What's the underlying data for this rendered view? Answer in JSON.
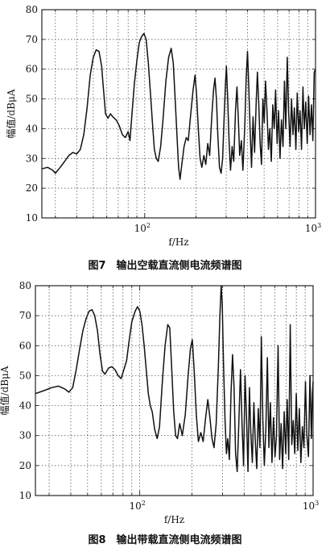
{
  "captions": {
    "fig7": "图7　输出空载直流侧电流频谱图",
    "fig8": "图8　输出带载直流侧电流频谱图"
  },
  "chart_data": [
    {
      "type": "line",
      "caption": "图7　输出空载直流侧电流频谱图",
      "xlabel": "f/Hz",
      "ylabel": "幅值/dBμA",
      "xscale": "log",
      "xlim": [
        25,
        1000
      ],
      "ylim": [
        10,
        80
      ],
      "x_tick_labels": [
        {
          "value": 100,
          "base": "10",
          "exp": "2"
        },
        {
          "value": 1000,
          "base": "10",
          "exp": "3"
        }
      ],
      "y_ticks": [
        10,
        20,
        30,
        40,
        50,
        60,
        70,
        80
      ],
      "grid": true,
      "grid_style": "dotted",
      "series": [
        {
          "points": [
            [
              25,
              26.5
            ],
            [
              27,
              27
            ],
            [
              29,
              26
            ],
            [
              30,
              25
            ],
            [
              32,
              27
            ],
            [
              34,
              29
            ],
            [
              36,
              31
            ],
            [
              38,
              32
            ],
            [
              40,
              31.5
            ],
            [
              42,
              33
            ],
            [
              44,
              38
            ],
            [
              46,
              47
            ],
            [
              48,
              58
            ],
            [
              50,
              64
            ],
            [
              52,
              66.5
            ],
            [
              54,
              66
            ],
            [
              56,
              61
            ],
            [
              57,
              55
            ],
            [
              58,
              50
            ],
            [
              59,
              45
            ],
            [
              61,
              43.5
            ],
            [
              63,
              45
            ],
            [
              65,
              44
            ],
            [
              68,
              43
            ],
            [
              71,
              41
            ],
            [
              74,
              38
            ],
            [
              77,
              37
            ],
            [
              80,
              39
            ],
            [
              82,
              36
            ],
            [
              84,
              44
            ],
            [
              87,
              55
            ],
            [
              90,
              63
            ],
            [
              93,
              69
            ],
            [
              96,
              71
            ],
            [
              99,
              72
            ],
            [
              102,
              70
            ],
            [
              105,
              62
            ],
            [
              108,
              52
            ],
            [
              111,
              42
            ],
            [
              114,
              33
            ],
            [
              117,
              30
            ],
            [
              120,
              29
            ],
            [
              124,
              34
            ],
            [
              128,
              43
            ],
            [
              133,
              56
            ],
            [
              138,
              64
            ],
            [
              143,
              67
            ],
            [
              147,
              62
            ],
            [
              151,
              49
            ],
            [
              155,
              36
            ],
            [
              158,
              27
            ],
            [
              161,
              23
            ],
            [
              165,
              28
            ],
            [
              170,
              34
            ],
            [
              175,
              37
            ],
            [
              180,
              36
            ],
            [
              186,
              45
            ],
            [
              192,
              53
            ],
            [
              197,
              58
            ],
            [
              201,
              52
            ],
            [
              206,
              40
            ],
            [
              211,
              30
            ],
            [
              216,
              27
            ],
            [
              222,
              31
            ],
            [
              228,
              28
            ],
            [
              234,
              35
            ],
            [
              240,
              31
            ],
            [
              247,
              44
            ],
            [
              253,
              53
            ],
            [
              258,
              57
            ],
            [
              263,
              50
            ],
            [
              268,
              38
            ],
            [
              274,
              27
            ],
            [
              280,
              25
            ],
            [
              286,
              30
            ],
            [
              292,
              44
            ],
            [
              297,
              55
            ],
            [
              301,
              61
            ],
            [
              306,
              50
            ],
            [
              312,
              36
            ],
            [
              318,
              26
            ],
            [
              325,
              34
            ],
            [
              332,
              29
            ],
            [
              340,
              46
            ],
            [
              347,
              54
            ],
            [
              353,
              44
            ],
            [
              360,
              31
            ],
            [
              368,
              36
            ],
            [
              376,
              26
            ],
            [
              385,
              40
            ],
            [
              393,
              57
            ],
            [
              400,
              66
            ],
            [
              407,
              54
            ],
            [
              414,
              40
            ],
            [
              422,
              27
            ],
            [
              431,
              44
            ],
            [
              440,
              32
            ],
            [
              449,
              48
            ],
            [
              457,
              59
            ],
            [
              465,
              49
            ],
            [
              474,
              35
            ],
            [
              483,
              28
            ],
            [
              492,
              50
            ],
            [
              501,
              42
            ],
            [
              510,
              56
            ],
            [
              520,
              46
            ],
            [
              530,
              33
            ],
            [
              540,
              40
            ],
            [
              551,
              29
            ],
            [
              562,
              48
            ],
            [
              573,
              40
            ],
            [
              584,
              53
            ],
            [
              596,
              35
            ],
            [
              608,
              46
            ],
            [
              620,
              30
            ],
            [
              632,
              43
            ],
            [
              645,
              34
            ],
            [
              658,
              56
            ],
            [
              670,
              40
            ],
            [
              683,
              64
            ],
            [
              697,
              45
            ],
            [
              710,
              34
            ],
            [
              724,
              50
            ],
            [
              738,
              38
            ],
            [
              752,
              47
            ],
            [
              767,
              33
            ],
            [
              782,
              52
            ],
            [
              797,
              39
            ],
            [
              812,
              46
            ],
            [
              828,
              33
            ],
            [
              844,
              54
            ],
            [
              860,
              40
            ],
            [
              877,
              49
            ],
            [
              894,
              35
            ],
            [
              911,
              51
            ],
            [
              929,
              38
            ],
            [
              947,
              48
            ],
            [
              965,
              36
            ],
            [
              983,
              59
            ],
            [
              1000,
              60
            ]
          ]
        }
      ]
    },
    {
      "type": "line",
      "caption": "图8　输出带载直流侧电流频谱图",
      "xlabel": "f/Hz",
      "ylabel": "幅值/dBμA",
      "xscale": "log",
      "xlim": [
        25,
        1000
      ],
      "ylim": [
        10,
        80
      ],
      "x_tick_labels": [
        {
          "value": 100,
          "base": "10",
          "exp": "2"
        },
        {
          "value": 1000,
          "base": "10",
          "exp": "3"
        }
      ],
      "y_ticks": [
        10,
        20,
        30,
        40,
        50,
        60,
        70,
        80
      ],
      "grid": true,
      "grid_style": "dotted",
      "series": [
        {
          "points": [
            [
              25,
              44
            ],
            [
              28,
              45
            ],
            [
              31,
              46
            ],
            [
              34,
              46.5
            ],
            [
              37,
              45.5
            ],
            [
              39,
              44.5
            ],
            [
              41,
              46
            ],
            [
              43,
              52
            ],
            [
              45,
              59
            ],
            [
              47,
              65
            ],
            [
              49,
              69
            ],
            [
              51,
              71.5
            ],
            [
              53,
              72
            ],
            [
              55,
              70
            ],
            [
              57,
              65
            ],
            [
              59,
              57
            ],
            [
              61,
              51.5
            ],
            [
              63,
              50.5
            ],
            [
              66,
              52.5
            ],
            [
              69,
              53
            ],
            [
              72,
              52
            ],
            [
              75,
              50
            ],
            [
              78,
              49
            ],
            [
              81,
              52
            ],
            [
              84,
              55
            ],
            [
              87,
              62
            ],
            [
              90,
              68
            ],
            [
              94,
              71.5
            ],
            [
              97,
              73
            ],
            [
              100,
              71.5
            ],
            [
              103,
              67
            ],
            [
              106,
              60
            ],
            [
              109,
              52
            ],
            [
              112,
              44
            ],
            [
              115,
              40
            ],
            [
              118,
              38
            ],
            [
              122,
              32
            ],
            [
              126,
              29
            ],
            [
              130,
              33
            ],
            [
              135,
              48
            ],
            [
              140,
              60
            ],
            [
              145,
              67
            ],
            [
              149,
              66
            ],
            [
              153,
              52
            ],
            [
              157,
              38
            ],
            [
              161,
              30
            ],
            [
              165,
              29
            ],
            [
              170,
              34
            ],
            [
              176,
              30
            ],
            [
              183,
              37
            ],
            [
              190,
              50
            ],
            [
              196,
              59
            ],
            [
              201,
              62
            ],
            [
              206,
              52
            ],
            [
              212,
              37
            ],
            [
              218,
              28
            ],
            [
              225,
              31
            ],
            [
              232,
              28
            ],
            [
              240,
              36
            ],
            [
              247,
              42
            ],
            [
              254,
              36
            ],
            [
              261,
              29
            ],
            [
              268,
              26
            ],
            [
              276,
              34
            ],
            [
              284,
              53
            ],
            [
              290,
              70
            ],
            [
              295,
              80
            ],
            [
              299,
              74
            ],
            [
              304,
              55
            ],
            [
              310,
              36
            ],
            [
              316,
              24
            ],
            [
              322,
              29
            ],
            [
              329,
              22
            ],
            [
              336,
              44
            ],
            [
              343,
              57
            ],
            [
              350,
              46
            ],
            [
              357,
              24
            ],
            [
              365,
              18
            ],
            [
              373,
              35
            ],
            [
              381,
              52
            ],
            [
              389,
              34
            ],
            [
              397,
              20
            ],
            [
              405,
              50
            ],
            [
              413,
              36
            ],
            [
              421,
              18
            ],
            [
              429,
              46
            ],
            [
              437,
              31
            ],
            [
              446,
              21
            ],
            [
              455,
              41
            ],
            [
              464,
              28
            ],
            [
              473,
              19
            ],
            [
              483,
              39
            ],
            [
              493,
              26
            ],
            [
              503,
              63
            ],
            [
              513,
              35
            ],
            [
              523,
              20
            ],
            [
              534,
              32
            ],
            [
              545,
              56
            ],
            [
              556,
              26
            ],
            [
              567,
              41
            ],
            [
              579,
              21
            ],
            [
              591,
              36
            ],
            [
              603,
              23
            ],
            [
              615,
              30
            ],
            [
              628,
              60
            ],
            [
              641,
              22
            ],
            [
              654,
              34
            ],
            [
              667,
              19
            ],
            [
              681,
              38
            ],
            [
              695,
              24
            ],
            [
              709,
              42
            ],
            [
              723,
              22
            ],
            [
              738,
              67
            ],
            [
              753,
              27
            ],
            [
              768,
              35
            ],
            [
              784,
              24
            ],
            [
              800,
              44
            ],
            [
              816,
              25
            ],
            [
              833,
              39
            ],
            [
              850,
              21
            ],
            [
              867,
              33
            ],
            [
              885,
              26
            ],
            [
              903,
              48
            ],
            [
              921,
              30
            ],
            [
              940,
              23
            ],
            [
              959,
              50
            ],
            [
              978,
              29
            ],
            [
              990,
              44
            ],
            [
              1000,
              48
            ]
          ]
        }
      ]
    }
  ]
}
